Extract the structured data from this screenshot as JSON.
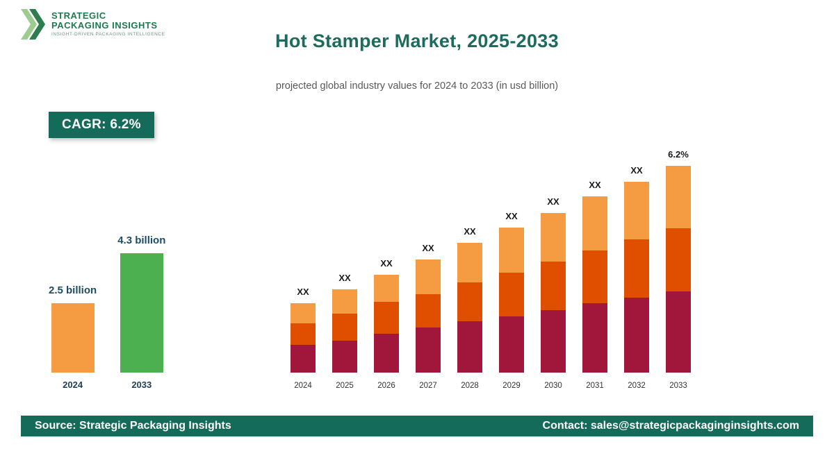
{
  "brand": {
    "name_line1": "STRATEGIC",
    "name_line2": "PACKAGING INSIGHTS",
    "tagline": "INSIGHT-DRIVEN PACKAGING INTELLIGENCE"
  },
  "header": {
    "title": "Hot Stamper Market, 2025-2033",
    "subtitle": "projected global industry values for 2024 to 2033 (in usd billion)"
  },
  "cagr_badge": "CAGR: 6.2%",
  "colors": {
    "teal": "#156b5a",
    "title_teal": "#1d6b5c",
    "orange_light": "#f59b42",
    "orange_dark": "#e04e00",
    "maroon": "#a1173c",
    "green": "#4caf50",
    "label_navy": "#1d4e66"
  },
  "mini_chart": {
    "unit": "usd billion",
    "bars": [
      {
        "year": "2024",
        "label": "2.5 billion",
        "value": 2.5,
        "color": "#f59b42"
      },
      {
        "year": "2033",
        "label": "4.3 billion",
        "value": 4.3,
        "color": "#4caf50"
      }
    ]
  },
  "chart_data": {
    "type": "bar",
    "variant": "stacked",
    "title": "Hot Stamper Market, 2025-2033",
    "subtitle": "projected global industry values for 2024 to 2033 (in usd billion)",
    "xlabel": "",
    "ylabel": "",
    "axes_shown": false,
    "grid": false,
    "legend": false,
    "note": "numeric values masked as XX in source image; segment values are relative heights",
    "categories": [
      "2024",
      "2025",
      "2026",
      "2027",
      "2028",
      "2029",
      "2030",
      "2031",
      "2032",
      "2033"
    ],
    "series": [
      {
        "name": "segment-bottom",
        "color": "#a1173c",
        "values": [
          40,
          46,
          56,
          65,
          74,
          81,
          90,
          100,
          108,
          117
        ]
      },
      {
        "name": "segment-middle",
        "color": "#e04e00",
        "values": [
          31,
          39,
          46,
          48,
          56,
          63,
          70,
          76,
          84,
          91
        ]
      },
      {
        "name": "segment-top",
        "color": "#f59b42",
        "values": [
          29,
          35,
          39,
          50,
          57,
          65,
          70,
          78,
          83,
          90
        ]
      }
    ],
    "bar_labels": [
      "XX",
      "XX",
      "XX",
      "XX",
      "XX",
      "XX",
      "XX",
      "XX",
      "XX",
      "6.2%"
    ]
  },
  "footer": {
    "source": "Source: Strategic Packaging Insights",
    "contact": "Contact: sales@strategicpackaginginsights.com"
  }
}
